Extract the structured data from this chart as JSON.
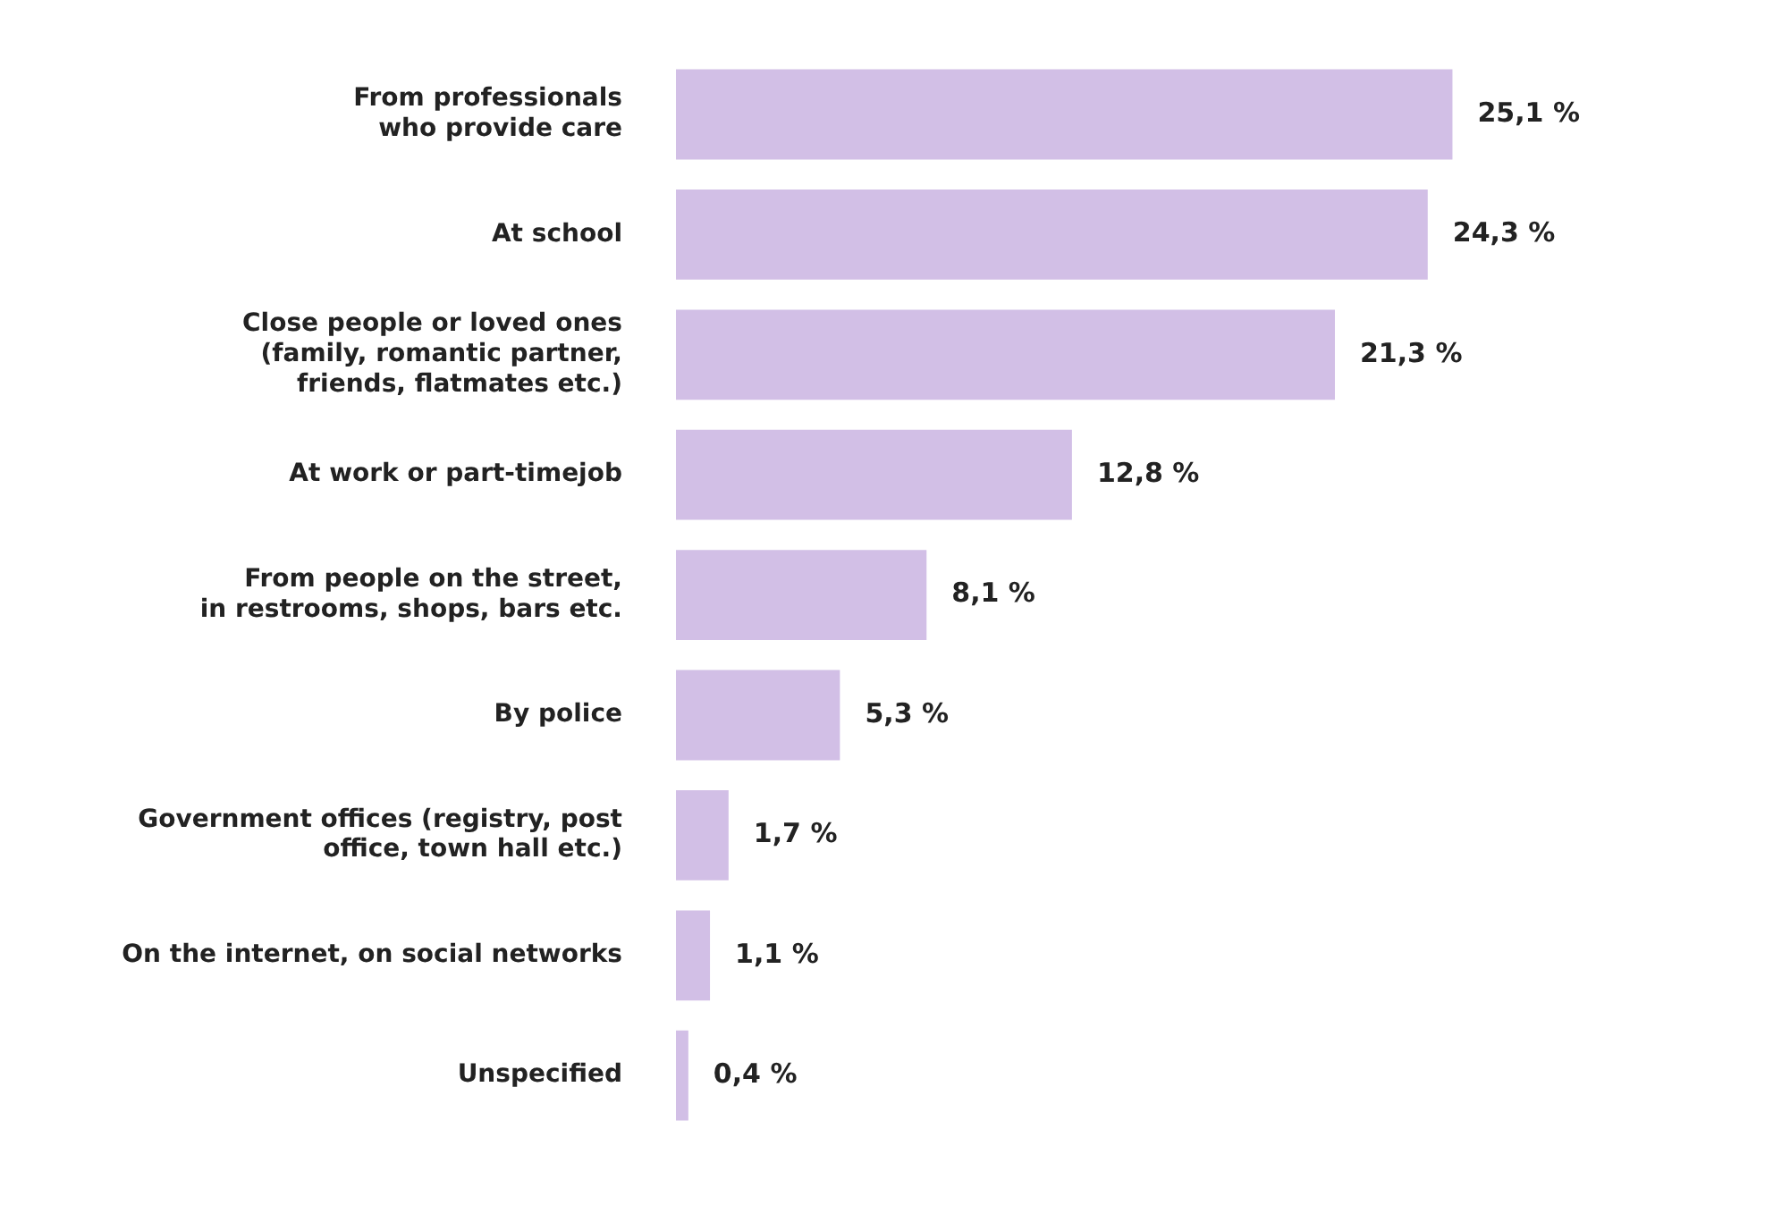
{
  "chart_data": {
    "type": "bar",
    "orientation": "horizontal",
    "categories": [
      "From professionals\nwho provide care",
      "At school",
      "Close people or loved ones\n(family, romantic partner,\nfriends, flatmates etc.)",
      "At work or part-timejob",
      "From people on the street,\nin restrooms, shops, bars etc.",
      "By police",
      "Government offices (registry, post\noffice, town hall etc.)",
      "On the internet, on social networks",
      "Unspecified"
    ],
    "values": [
      25.1,
      24.3,
      21.3,
      12.8,
      8.1,
      5.3,
      1.7,
      1.1,
      0.4
    ],
    "value_labels": [
      "25,1 %",
      "24,3 %",
      "21,3 %",
      "12,8 %",
      "8,1 %",
      "5,3 %",
      "1,7 %",
      "1,1 %",
      "0,4 %"
    ],
    "color": "#d2bfe6",
    "tick_labels": "y"
  }
}
